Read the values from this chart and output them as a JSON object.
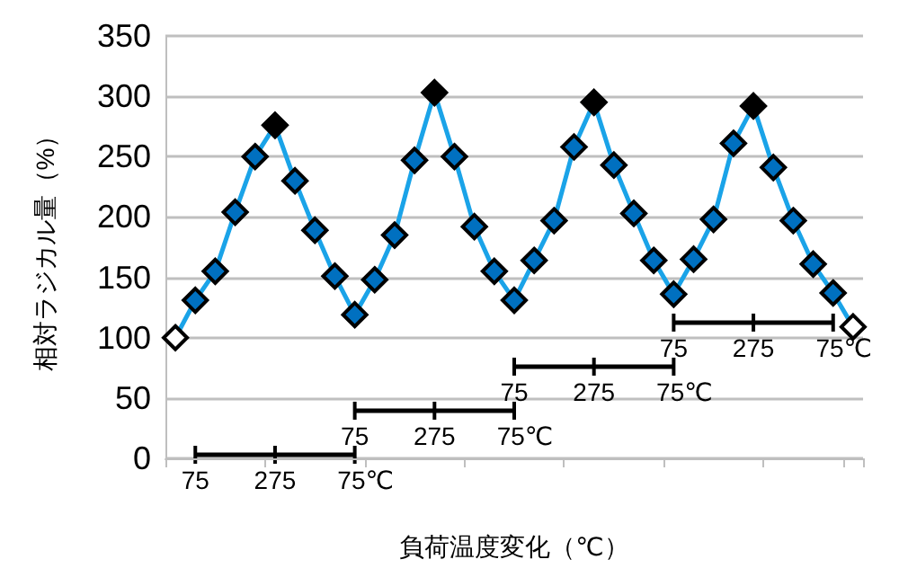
{
  "chart_data": {
    "type": "line",
    "xlabel": "負荷温度変化（℃）",
    "ylabel": "相対ラジカル量（%）",
    "categories": [
      null,
      null,
      null,
      null,
      null,
      null,
      null,
      null,
      null,
      null,
      null,
      null,
      null,
      null,
      null,
      null,
      null,
      null,
      null,
      null,
      null,
      null,
      null,
      null,
      null,
      null,
      null,
      null,
      null,
      null,
      null,
      null,
      null,
      null,
      null
    ],
    "series": [
      {
        "color": "#1aa3e8",
        "values": [
          100,
          131,
          155,
          204,
          250,
          276,
          230,
          189,
          151,
          119,
          148,
          185,
          247,
          303,
          250,
          192,
          155,
          131,
          164,
          197,
          258,
          295,
          243,
          203,
          164,
          136,
          165,
          198,
          261,
          292,
          241,
          197,
          161,
          137,
          109
        ],
        "colors": [
          "#ffffff",
          "#0070c0",
          "#0070c0",
          "#0070c0",
          "#0070c0",
          "#000000",
          "#0070c0",
          "#0070c0",
          "#0070c0",
          "#0070c0",
          "#0070c0",
          "#0070c0",
          "#0070c0",
          "#000000",
          "#0070c0",
          "#0070c0",
          "#0070c0",
          "#0070c0",
          "#0070c0",
          "#0070c0",
          "#0070c0",
          "#000000",
          "#0070c0",
          "#0070c0",
          "#0070c0",
          "#0070c0",
          "#0070c0",
          "#0070c0",
          "#0070c0",
          "#000000",
          "#0070c0",
          "#0070c0",
          "#0070c0",
          "#0070c0",
          "#ffffff"
        ]
      }
    ],
    "ylim": [
      0,
      350
    ],
    "yticks": [
      0,
      50,
      100,
      150,
      200,
      250,
      300,
      350
    ],
    "grid": "y",
    "marker": "diamond",
    "line_style": "solid",
    "annotations": [
      "75",
      "275",
      "75℃",
      "75",
      "275",
      "75℃",
      "75",
      "275",
      "75℃",
      "75",
      "275",
      "75℃"
    ]
  }
}
